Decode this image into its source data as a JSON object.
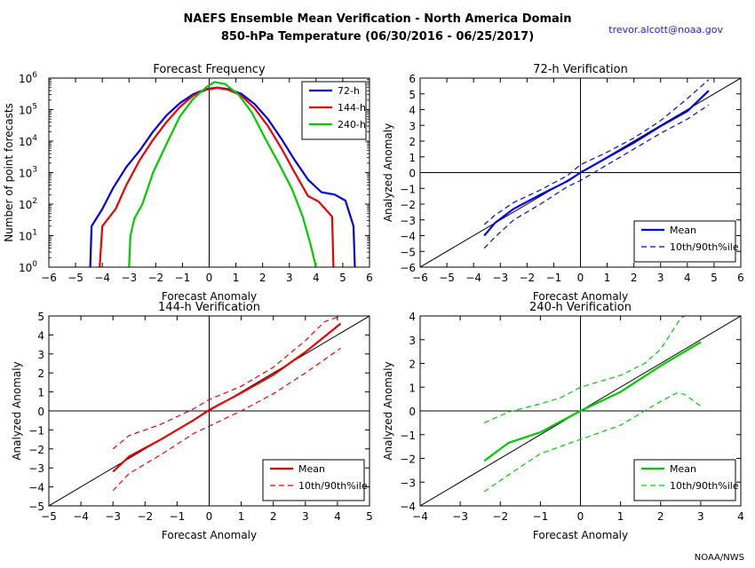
{
  "header": {
    "title_line1": "NAEFS Ensemble Mean Verification - North America Domain",
    "title_line2": "850-hPa Temperature (06/30/2016 - 06/25/2017)",
    "email": "trevor.alcott@noaa.gov",
    "credit": "NOAA/NWS"
  },
  "colors": {
    "h72": "#0000ee",
    "h144": "#ee0000",
    "h240": "#00cc00"
  },
  "chart_data": [
    {
      "type": "line",
      "title": "Forecast Frequency",
      "xlabel": "Forecast Anomaly",
      "ylabel": "Number of point forecasts",
      "xlim": [
        -6,
        6
      ],
      "ylim": [
        1,
        1000000
      ],
      "yscale": "log",
      "xticks": [
        -6,
        -5,
        -4,
        -3,
        -2,
        -1,
        0,
        1,
        2,
        3,
        4,
        5,
        6
      ],
      "yticks": [
        {
          "value": 1,
          "base": "10",
          "exp": "0"
        },
        {
          "value": 10,
          "base": "10",
          "exp": "1"
        },
        {
          "value": 100,
          "base": "10",
          "exp": "2"
        },
        {
          "value": 1000,
          "base": "10",
          "exp": "3"
        },
        {
          "value": 10000,
          "base": "10",
          "exp": "4"
        },
        {
          "value": 100000,
          "base": "10",
          "exp": "5"
        },
        {
          "value": 1000000,
          "base": "10",
          "exp": "6"
        }
      ],
      "legend_position": "top-right",
      "series": [
        {
          "name": "72-h",
          "color": "#0000ee",
          "points": [
            [
              -4.45,
              1
            ],
            [
              -4.4,
              20
            ],
            [
              -4.0,
              70
            ],
            [
              -3.6,
              320
            ],
            [
              -3.1,
              1500
            ],
            [
              -2.6,
              5000
            ],
            [
              -2.1,
              20000
            ],
            [
              -1.6,
              65000
            ],
            [
              -1.1,
              160000
            ],
            [
              -0.6,
              310000
            ],
            [
              -0.1,
              450000
            ],
            [
              0.3,
              500000
            ],
            [
              0.7,
              450000
            ],
            [
              1.2,
              320000
            ],
            [
              1.7,
              150000
            ],
            [
              2.2,
              50000
            ],
            [
              2.7,
              12000
            ],
            [
              3.2,
              2500
            ],
            [
              3.7,
              600
            ],
            [
              4.2,
              240
            ],
            [
              4.7,
              200
            ],
            [
              5.1,
              130
            ],
            [
              5.4,
              20
            ],
            [
              5.45,
              1
            ]
          ]
        },
        {
          "name": "144-h",
          "color": "#ee0000",
          "points": [
            [
              -4.1,
              1
            ],
            [
              -4.0,
              20
            ],
            [
              -3.5,
              70
            ],
            [
              -3.1,
              400
            ],
            [
              -2.6,
              2500
            ],
            [
              -2.1,
              11000
            ],
            [
              -1.6,
              40000
            ],
            [
              -1.1,
              120000
            ],
            [
              -0.6,
              280000
            ],
            [
              -0.1,
              430000
            ],
            [
              0.3,
              490000
            ],
            [
              0.7,
              430000
            ],
            [
              1.2,
              280000
            ],
            [
              1.7,
              110000
            ],
            [
              2.2,
              30000
            ],
            [
              2.7,
              6000
            ],
            [
              3.2,
              1000
            ],
            [
              3.7,
              180
            ],
            [
              4.1,
              120
            ],
            [
              4.6,
              40
            ],
            [
              4.65,
              1
            ]
          ]
        },
        {
          "name": "240-h",
          "color": "#00cc00",
          "points": [
            [
              -3.0,
              1
            ],
            [
              -2.95,
              10
            ],
            [
              -2.8,
              35
            ],
            [
              -2.5,
              100
            ],
            [
              -2.1,
              1000
            ],
            [
              -1.6,
              8000
            ],
            [
              -1.1,
              60000
            ],
            [
              -0.6,
              220000
            ],
            [
              -0.1,
              520000
            ],
            [
              0.2,
              750000
            ],
            [
              0.6,
              650000
            ],
            [
              1.1,
              300000
            ],
            [
              1.6,
              80000
            ],
            [
              2.1,
              12000
            ],
            [
              2.6,
              2000
            ],
            [
              3.1,
              300
            ],
            [
              3.5,
              40
            ],
            [
              3.8,
              5
            ],
            [
              4.0,
              1
            ]
          ]
        }
      ]
    },
    {
      "type": "line",
      "title": "72-h Verification",
      "xlabel": "Forecast Anomaly",
      "ylabel": "Analyzed Anomaly",
      "xlim": [
        -6,
        6
      ],
      "ylim": [
        -6,
        6
      ],
      "xticks": [
        -6,
        -5,
        -4,
        -3,
        -2,
        -1,
        0,
        1,
        2,
        3,
        4,
        5,
        6
      ],
      "yticks": [
        -6,
        -5,
        -4,
        -3,
        -2,
        -1,
        0,
        1,
        2,
        3,
        4,
        5,
        6
      ],
      "legend_position": "lower-right",
      "color": "#0000ee",
      "series": [
        {
          "name": "Mean",
          "style": "solid",
          "points": [
            [
              -3.6,
              -4.0
            ],
            [
              -3.2,
              -3.2
            ],
            [
              -2.5,
              -2.3
            ],
            [
              -1.5,
              -1.4
            ],
            [
              -0.5,
              -0.55
            ],
            [
              0.0,
              0.0
            ],
            [
              1.0,
              0.95
            ],
            [
              2.0,
              1.9
            ],
            [
              3.0,
              2.95
            ],
            [
              4.0,
              3.9
            ],
            [
              4.8,
              5.2
            ]
          ]
        },
        {
          "name": "10th/90th%ile",
          "style": "dashed",
          "points": [
            [
              -3.6,
              -3.3
            ],
            [
              -3.2,
              -2.7
            ],
            [
              -2.5,
              -1.9
            ],
            [
              -1.5,
              -1.1
            ],
            [
              -0.5,
              -0.2
            ],
            [
              0.0,
              0.5
            ],
            [
              1.0,
              1.3
            ],
            [
              2.0,
              2.2
            ],
            [
              3.0,
              3.3
            ],
            [
              4.0,
              4.7
            ],
            [
              4.8,
              5.9
            ]
          ]
        },
        {
          "name": "10th/90th%ile",
          "style": "dashed",
          "points": [
            [
              -3.6,
              -4.8
            ],
            [
              -3.2,
              -4.1
            ],
            [
              -2.5,
              -3.0
            ],
            [
              -1.5,
              -2.0
            ],
            [
              -0.5,
              -0.9
            ],
            [
              0.0,
              -0.5
            ],
            [
              1.0,
              0.5
            ],
            [
              2.0,
              1.5
            ],
            [
              3.0,
              2.5
            ],
            [
              4.0,
              3.4
            ],
            [
              4.8,
              4.3
            ]
          ]
        }
      ]
    },
    {
      "type": "line",
      "title": "144-h Verification",
      "xlabel": "Forecast Anomaly",
      "ylabel": "Analyzed Anomaly",
      "xlim": [
        -5,
        5
      ],
      "ylim": [
        -5,
        5
      ],
      "xticks": [
        -5,
        -4,
        -3,
        -2,
        -1,
        0,
        1,
        2,
        3,
        4,
        5
      ],
      "yticks": [
        -5,
        -4,
        -3,
        -2,
        -1,
        0,
        1,
        2,
        3,
        4,
        5
      ],
      "legend_position": "lower-right",
      "color": "#ee0000",
      "series": [
        {
          "name": "Mean",
          "style": "solid",
          "points": [
            [
              -3.0,
              -3.2
            ],
            [
              -2.5,
              -2.4
            ],
            [
              -1.5,
              -1.5
            ],
            [
              -0.5,
              -0.5
            ],
            [
              0.0,
              0.05
            ],
            [
              1.0,
              0.95
            ],
            [
              2.0,
              1.9
            ],
            [
              3.0,
              3.1
            ],
            [
              4.1,
              4.6
            ]
          ]
        },
        {
          "name": "10th/90th%ile",
          "style": "dashed",
          "points": [
            [
              -3.0,
              -2.0
            ],
            [
              -2.5,
              -1.3
            ],
            [
              -1.5,
              -0.7
            ],
            [
              -0.5,
              0.1
            ],
            [
              0.0,
              0.6
            ],
            [
              1.0,
              1.3
            ],
            [
              2.0,
              2.3
            ],
            [
              3.0,
              3.7
            ],
            [
              3.6,
              4.7
            ],
            [
              4.1,
              5.0
            ]
          ]
        },
        {
          "name": "10th/90th%ile",
          "style": "dashed",
          "points": [
            [
              -3.0,
              -4.2
            ],
            [
              -2.5,
              -3.3
            ],
            [
              -1.5,
              -2.3
            ],
            [
              -0.5,
              -1.2
            ],
            [
              0.0,
              -0.8
            ],
            [
              1.0,
              0.0
            ],
            [
              2.0,
              0.9
            ],
            [
              3.0,
              2.0
            ],
            [
              4.1,
              3.3
            ]
          ]
        }
      ]
    },
    {
      "type": "line",
      "title": "240-h Verification",
      "xlabel": "Forecast Anomaly",
      "ylabel": "Analyzed Anomaly",
      "xlim": [
        -4,
        4
      ],
      "ylim": [
        -4,
        4
      ],
      "xticks": [
        -4,
        -3,
        -2,
        -1,
        0,
        1,
        2,
        3,
        4
      ],
      "yticks": [
        -4,
        -3,
        -2,
        -1,
        0,
        1,
        2,
        3,
        4
      ],
      "legend_position": "lower-right",
      "color": "#00cc00",
      "series": [
        {
          "name": "Mean",
          "style": "solid",
          "points": [
            [
              -2.4,
              -2.1
            ],
            [
              -1.8,
              -1.35
            ],
            [
              -1.0,
              -0.9
            ],
            [
              -0.5,
              -0.45
            ],
            [
              0.0,
              0.0
            ],
            [
              1.0,
              0.8
            ],
            [
              2.0,
              1.9
            ],
            [
              3.0,
              2.9
            ]
          ]
        },
        {
          "name": "10th/90th%ile",
          "style": "dashed",
          "points": [
            [
              -2.4,
              -0.5
            ],
            [
              -1.8,
              -0.05
            ],
            [
              -1.0,
              0.3
            ],
            [
              -0.5,
              0.55
            ],
            [
              0.0,
              1.0
            ],
            [
              1.0,
              1.5
            ],
            [
              1.6,
              2.0
            ],
            [
              2.0,
              2.6
            ],
            [
              2.5,
              3.9
            ],
            [
              2.6,
              4.0
            ]
          ]
        },
        {
          "name": "10th/90th%ile",
          "style": "dashed",
          "points": [
            [
              -2.4,
              -3.4
            ],
            [
              -1.8,
              -2.7
            ],
            [
              -1.0,
              -1.8
            ],
            [
              0.0,
              -1.2
            ],
            [
              1.0,
              -0.6
            ],
            [
              2.0,
              0.4
            ],
            [
              2.4,
              0.75
            ],
            [
              2.6,
              0.7
            ],
            [
              3.0,
              0.2
            ]
          ]
        }
      ]
    }
  ]
}
